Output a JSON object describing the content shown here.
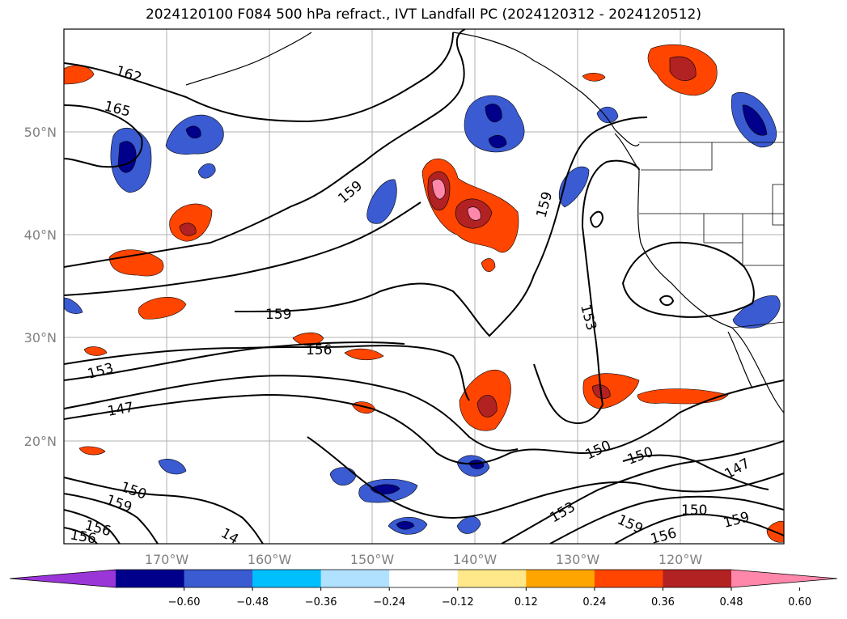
{
  "chart_data": {
    "type": "contour-map",
    "title": "2024120100 F084 500 hPa refract., IVT Landfall PC (2024120312 - 2024120512)",
    "x_ticks": [
      "170°W",
      "160°W",
      "150°W",
      "140°W",
      "130°W",
      "120°W"
    ],
    "y_ticks": [
      "50°N",
      "40°N",
      "30°N",
      "20°N"
    ],
    "contour_labels": [
      "162",
      "165",
      "159",
      "159",
      "159",
      "156",
      "153",
      "153",
      "147",
      "150",
      "150",
      "147",
      "150",
      "153",
      "159",
      "159",
      "156",
      "150",
      "159",
      "156",
      "156",
      "14"
    ],
    "colorbar": {
      "ticks": [
        "−0.60",
        "−0.48",
        "−0.36",
        "−0.24",
        "−0.12",
        "0.12",
        "0.24",
        "0.36",
        "0.48",
        "0.60"
      ],
      "colors": [
        "#9a35d8",
        "#00008b",
        "#3a5bd1",
        "#00bfff",
        "#b0e2ff",
        "#ffffff",
        "#ffe88a",
        "#ffa500",
        "#ff4500",
        "#b22222",
        "#ff87aa"
      ]
    },
    "grid": true
  }
}
